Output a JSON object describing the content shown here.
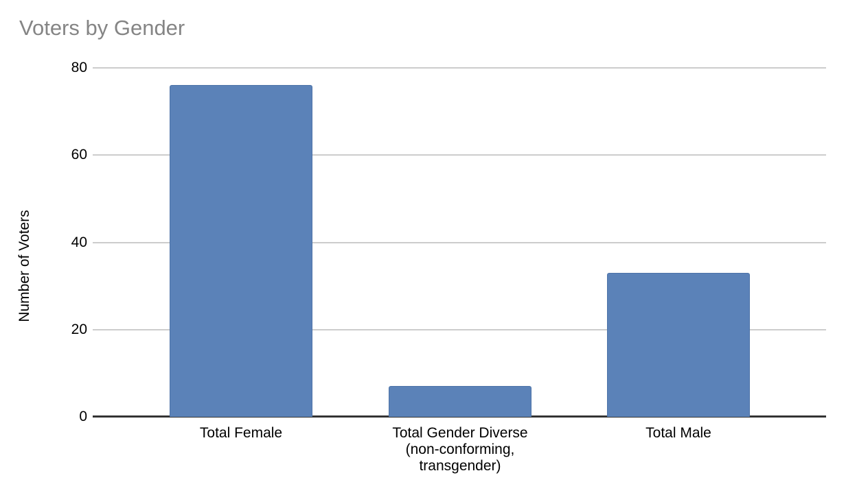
{
  "chart_data": {
    "type": "bar",
    "title": "Voters by Gender",
    "categories": [
      "Total Female",
      "Total Gender Diverse (non-conforming, transgender)",
      "Total Male"
    ],
    "values": [
      76,
      7,
      33
    ],
    "xlabel": "",
    "ylabel": "Number of Voters",
    "ylim": [
      0,
      80
    ],
    "yticks": [
      0,
      20,
      40,
      60,
      80
    ],
    "grid": true,
    "legend": "none",
    "colors": {
      "bar": "#5b82b8",
      "bar_border": "#4d73a8",
      "gridline": "#cccccc",
      "axis": "#333333",
      "title_text": "#858585",
      "label_text": "#000000",
      "background": "#ffffff"
    }
  }
}
